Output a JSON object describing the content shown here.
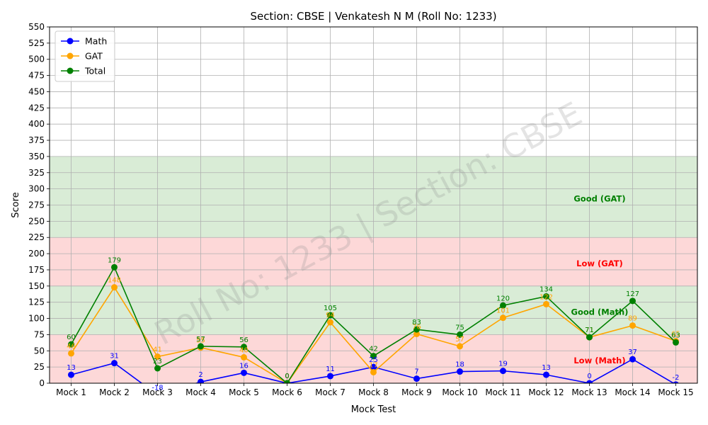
{
  "chart_data": {
    "type": "line",
    "title": "Section: CBSE | Venkatesh N M (Roll No: 1233)",
    "xlabel": "Mock Test",
    "ylabel": "Score",
    "ylim": [
      0,
      550
    ],
    "ytick_step": 25,
    "grid": true,
    "legend_position": "top-left",
    "watermark": "Roll No: 1233 | Section: CBSE",
    "categories": [
      "Mock 1",
      "Mock 2",
      "Mock 3",
      "Mock 4",
      "Mock 5",
      "Mock 6",
      "Mock 7",
      "Mock 8",
      "Mock 9",
      "Mock 10",
      "Mock 11",
      "Mock 12",
      "Mock 13",
      "Mock 14",
      "Mock 15"
    ],
    "series": [
      {
        "name": "Math",
        "color": "#0000ff",
        "values": [
          13,
          31,
          -18,
          2,
          16,
          0,
          11,
          25,
          7,
          18,
          19,
          13,
          0,
          37,
          -2
        ]
      },
      {
        "name": "GAT",
        "color": "#ffa500",
        "values": [
          46,
          148,
          41,
          55,
          40,
          0,
          94,
          17,
          76,
          57,
          101,
          122,
          71,
          89,
          65
        ]
      },
      {
        "name": "Total",
        "color": "#008000",
        "values": [
          60,
          179,
          23,
          57,
          56,
          0,
          105,
          42,
          83,
          75,
          120,
          134,
          71,
          127,
          63
        ]
      }
    ],
    "zones": [
      {
        "from": 250,
        "to": 350,
        "color": "#d9ecd6",
        "label": "Good (GAT)",
        "label_value": 285,
        "label_color": "#008000"
      },
      {
        "from": 150,
        "to": 225,
        "color": "#fdd8d8",
        "label": "Low (GAT)",
        "label_value": 185,
        "label_color": "#ff0000"
      },
      {
        "from": 75,
        "to": 150,
        "color": "#d9ecd6",
        "label": "Good (Math)",
        "label_value": 110,
        "label_color": "#008000"
      },
      {
        "from": 0,
        "to": 75,
        "color": "#fdd8d8",
        "label": "Low (Math)",
        "label_value": 35,
        "label_color": "#ff0000"
      },
      {
        "from": 225,
        "to": 250,
        "color": "#d9ecd6",
        "label": "",
        "label_value": 0,
        "label_color": "#008000"
      }
    ]
  }
}
